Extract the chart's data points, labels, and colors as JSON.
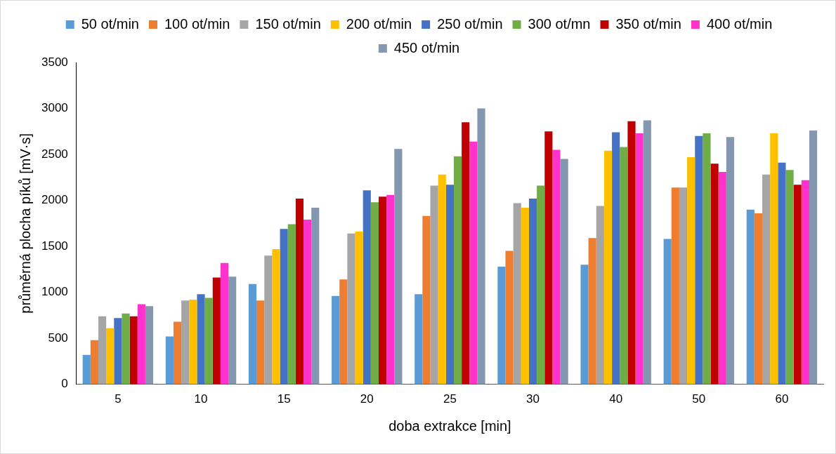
{
  "chart_data": {
    "type": "bar",
    "xlabel": "doba extrakce [min]",
    "ylabel": "průměrná plocha píků [mV·s]",
    "categories": [
      "5",
      "10",
      "15",
      "20",
      "25",
      "30",
      "40",
      "50",
      "60"
    ],
    "series": [
      {
        "name": "50 ot/min",
        "color": "#5b9bd5",
        "values": [
          320,
          520,
          1090,
          960,
          980,
          1280,
          1300,
          1580,
          1900
        ]
      },
      {
        "name": "100 ot/min",
        "color": "#ed7d31",
        "values": [
          480,
          680,
          910,
          1140,
          1830,
          1450,
          1590,
          2140,
          1860
        ]
      },
      {
        "name": "150 ot/min",
        "color": "#a5a5a5",
        "values": [
          740,
          910,
          1400,
          1640,
          2160,
          1970,
          1940,
          2140,
          2280
        ]
      },
      {
        "name": "200 ot/min",
        "color": "#ffc000",
        "values": [
          610,
          920,
          1470,
          1660,
          2280,
          1920,
          2540,
          2470,
          2730
        ]
      },
      {
        "name": "250 ot/min",
        "color": "#4472c4",
        "values": [
          720,
          980,
          1690,
          2110,
          2170,
          2020,
          2740,
          2700,
          2410
        ]
      },
      {
        "name": "300 ot/mn",
        "color": "#70ad47",
        "values": [
          770,
          940,
          1740,
          1980,
          2480,
          2160,
          2580,
          2730,
          2330
        ]
      },
      {
        "name": "350 ot/min",
        "color": "#c00000",
        "values": [
          740,
          1160,
          2020,
          2040,
          2850,
          2750,
          2860,
          2400,
          2170
        ]
      },
      {
        "name": "400 ot/min",
        "color": "#ff33cc",
        "values": [
          870,
          1320,
          1790,
          2060,
          2640,
          2550,
          2730,
          2310,
          2220
        ]
      },
      {
        "name": "450 ot/min",
        "color": "#8497b0",
        "values": [
          850,
          1170,
          1920,
          2560,
          3000,
          2450,
          2870,
          2690,
          2760
        ]
      }
    ],
    "ylim": [
      0,
      3500
    ],
    "yticks": [
      0,
      500,
      1000,
      1500,
      2000,
      2500,
      3000,
      3500
    ],
    "grid": false,
    "legend": "top"
  }
}
